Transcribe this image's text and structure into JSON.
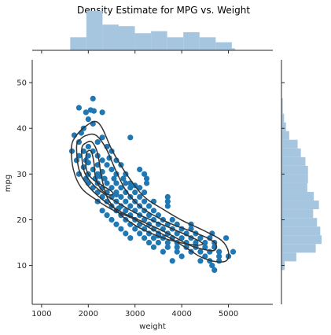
{
  "chart_data": {
    "type": "scatter",
    "title": "Density Estimate for MPG vs. Weight",
    "xlabel": "weight",
    "ylabel": "mpg",
    "xlim": [
      800,
      5950
    ],
    "ylim": [
      1.5,
      55
    ],
    "x_ticks": [
      1000,
      2000,
      3000,
      4000,
      5000
    ],
    "x_tick_labels": [
      "1000",
      "2000",
      "3000",
      "4000",
      "5000"
    ],
    "y_ticks": [
      10,
      20,
      30,
      40,
      50
    ],
    "y_tick_labels": [
      "10",
      "20",
      "30",
      "40",
      "50"
    ],
    "grid": false,
    "colors": {
      "points": "#1f77b4",
      "histogram": "#a6c6e0",
      "contour": "#333333",
      "axis": "#262626"
    },
    "points": [
      [
        1800,
        44.5
      ],
      [
        2100,
        46.5
      ],
      [
        2050,
        44
      ],
      [
        2120,
        43.8
      ],
      [
        2300,
        43.5
      ],
      [
        1950,
        43.5
      ],
      [
        2000,
        42
      ],
      [
        2100,
        41
      ],
      [
        1900,
        40
      ],
      [
        1850,
        39
      ],
      [
        1700,
        38.5
      ],
      [
        2300,
        38
      ],
      [
        2900,
        38
      ],
      [
        1800,
        37
      ],
      [
        2200,
        37
      ],
      [
        2000,
        36
      ],
      [
        2400,
        36
      ],
      [
        1650,
        35
      ],
      [
        1900,
        35
      ],
      [
        2100,
        35
      ],
      [
        2500,
        35
      ],
      [
        1800,
        34
      ],
      [
        2000,
        34
      ],
      [
        2200,
        34
      ],
      [
        2300,
        33
      ],
      [
        1750,
        33
      ],
      [
        2600,
        33
      ],
      [
        2000,
        32.5
      ],
      [
        2400,
        32
      ],
      [
        2700,
        32
      ],
      [
        1900,
        31.5
      ],
      [
        2100,
        31
      ],
      [
        2500,
        31
      ],
      [
        2300,
        30.5
      ],
      [
        1800,
        30
      ],
      [
        2000,
        30
      ],
      [
        2200,
        30
      ],
      [
        2600,
        30
      ],
      [
        2800,
        30
      ],
      [
        3100,
        31
      ],
      [
        3200,
        30
      ],
      [
        1950,
        29
      ],
      [
        2150,
        29
      ],
      [
        2350,
        29
      ],
      [
        2550,
        29
      ],
      [
        2750,
        29
      ],
      [
        3250,
        29
      ],
      [
        2000,
        28
      ],
      [
        2200,
        28
      ],
      [
        2400,
        28
      ],
      [
        2600,
        28
      ],
      [
        2800,
        28
      ],
      [
        2900,
        28
      ],
      [
        3000,
        27.5
      ],
      [
        2100,
        27
      ],
      [
        2300,
        27
      ],
      [
        2500,
        27
      ],
      [
        2700,
        27
      ],
      [
        2900,
        27
      ],
      [
        3100,
        27
      ],
      [
        2200,
        26
      ],
      [
        2400,
        26
      ],
      [
        2600,
        26
      ],
      [
        2800,
        26
      ],
      [
        3000,
        26
      ],
      [
        3200,
        26
      ],
      [
        2300,
        25
      ],
      [
        2500,
        25
      ],
      [
        2700,
        25
      ],
      [
        2900,
        25
      ],
      [
        3100,
        25
      ],
      [
        3700,
        25
      ],
      [
        2400,
        24
      ],
      [
        2600,
        24
      ],
      [
        2800,
        24
      ],
      [
        3000,
        24
      ],
      [
        3200,
        24
      ],
      [
        3400,
        24
      ],
      [
        3700,
        24
      ],
      [
        2200,
        24
      ],
      [
        2500,
        23
      ],
      [
        2700,
        23
      ],
      [
        2900,
        23
      ],
      [
        3100,
        23
      ],
      [
        3300,
        23
      ],
      [
        2300,
        22
      ],
      [
        2600,
        22
      ],
      [
        2800,
        22
      ],
      [
        3000,
        22
      ],
      [
        3200,
        22
      ],
      [
        3400,
        22
      ],
      [
        2400,
        21
      ],
      [
        2700,
        21
      ],
      [
        2900,
        21
      ],
      [
        3100,
        21
      ],
      [
        3300,
        21
      ],
      [
        3500,
        21
      ],
      [
        2500,
        20
      ],
      [
        2800,
        20
      ],
      [
        3000,
        20
      ],
      [
        3200,
        20
      ],
      [
        3400,
        20
      ],
      [
        3600,
        20
      ],
      [
        3800,
        20
      ],
      [
        2600,
        19
      ],
      [
        2900,
        19
      ],
      [
        3100,
        19
      ],
      [
        3300,
        19
      ],
      [
        3500,
        19
      ],
      [
        3700,
        19
      ],
      [
        3900,
        19
      ],
      [
        2700,
        18
      ],
      [
        3000,
        18
      ],
      [
        3200,
        18
      ],
      [
        3400,
        18
      ],
      [
        3600,
        18
      ],
      [
        3800,
        18
      ],
      [
        4000,
        18
      ],
      [
        4200,
        18
      ],
      [
        2800,
        17
      ],
      [
        3100,
        17
      ],
      [
        3300,
        17
      ],
      [
        3500,
        17
      ],
      [
        3700,
        17
      ],
      [
        3900,
        17
      ],
      [
        4100,
        17
      ],
      [
        4300,
        17
      ],
      [
        2900,
        16
      ],
      [
        3200,
        16
      ],
      [
        3400,
        16
      ],
      [
        3600,
        16
      ],
      [
        3800,
        16
      ],
      [
        4000,
        16
      ],
      [
        4200,
        16
      ],
      [
        4400,
        16
      ],
      [
        4600,
        16
      ],
      [
        3300,
        15
      ],
      [
        3500,
        15
      ],
      [
        3700,
        15
      ],
      [
        3900,
        15
      ],
      [
        4100,
        15
      ],
      [
        4300,
        15
      ],
      [
        4500,
        15
      ],
      [
        4700,
        15
      ],
      [
        3400,
        14
      ],
      [
        3700,
        14
      ],
      [
        3900,
        14
      ],
      [
        4100,
        14
      ],
      [
        4300,
        14
      ],
      [
        4500,
        14
      ],
      [
        4700,
        14
      ],
      [
        3600,
        13
      ],
      [
        3900,
        13
      ],
      [
        4200,
        13
      ],
      [
        4400,
        13
      ],
      [
        4600,
        13
      ],
      [
        4800,
        13
      ],
      [
        5100,
        13
      ],
      [
        4500,
        12
      ],
      [
        4800,
        12
      ],
      [
        4000,
        12
      ],
      [
        3800,
        11
      ],
      [
        4400,
        11
      ],
      [
        4600,
        11
      ],
      [
        4800,
        11
      ],
      [
        5000,
        12
      ],
      [
        4650,
        10
      ],
      [
        4700,
        9
      ],
      [
        4950,
        16
      ],
      [
        4650,
        17
      ],
      [
        4200,
        19
      ],
      [
        3700,
        23
      ],
      [
        3250,
        28
      ],
      [
        2250,
        29.5
      ],
      [
        1950,
        33
      ],
      [
        2200,
        32
      ],
      [
        2450,
        33.5
      ],
      [
        2600,
        25.5
      ],
      [
        2650,
        22.5
      ],
      [
        3500,
        16.5
      ]
    ],
    "contours": [
      [
        [
          1640,
          36
        ],
        [
          1680,
          31
        ],
        [
          1850,
          27
        ],
        [
          2150,
          24.5
        ],
        [
          2550,
          22
        ],
        [
          2950,
          20.3
        ],
        [
          3350,
          18
        ],
        [
          3750,
          16
        ],
        [
          4150,
          13.5
        ],
        [
          4400,
          11.9
        ],
        [
          4700,
          10.9
        ],
        [
          4950,
          11
        ],
        [
          5000,
          13
        ],
        [
          4850,
          15.5
        ],
        [
          4500,
          17.5
        ],
        [
          4000,
          19.9
        ],
        [
          3600,
          22.3
        ],
        [
          3200,
          25
        ],
        [
          2850,
          29.5
        ],
        [
          2520,
          35
        ],
        [
          2300,
          40
        ],
        [
          2150,
          41.5
        ],
        [
          1950,
          40.5
        ],
        [
          1750,
          38.5
        ]
      ],
      [
        [
          1750,
          36
        ],
        [
          1800,
          31
        ],
        [
          1980,
          27.6
        ],
        [
          2280,
          24.6
        ],
        [
          2650,
          22
        ],
        [
          3000,
          20.3
        ],
        [
          3400,
          18.5
        ],
        [
          3800,
          16.5
        ],
        [
          4150,
          14.5
        ],
        [
          4480,
          13.5
        ],
        [
          4700,
          13.3
        ],
        [
          4730,
          14.7
        ],
        [
          4550,
          16
        ],
        [
          4200,
          17.5
        ],
        [
          3800,
          19
        ],
        [
          3450,
          20.7
        ],
        [
          3100,
          23
        ],
        [
          2800,
          26.5
        ],
        [
          2580,
          31
        ],
        [
          2370,
          35.8
        ],
        [
          2160,
          38.5
        ],
        [
          1970,
          38.5
        ],
        [
          1820,
          37.5
        ]
      ],
      [
        [
          1860,
          35.5
        ],
        [
          1900,
          31
        ],
        [
          2050,
          28.3
        ],
        [
          2320,
          25.8
        ],
        [
          2700,
          23.3
        ],
        [
          3050,
          21.3
        ],
        [
          3450,
          19.5
        ],
        [
          3850,
          17.8
        ],
        [
          4200,
          16.2
        ],
        [
          4400,
          15.2
        ],
        [
          4440,
          14.6
        ],
        [
          4250,
          14.5
        ],
        [
          3800,
          15.4
        ],
        [
          3400,
          16.8
        ],
        [
          3000,
          18.8
        ],
        [
          2650,
          21.5
        ],
        [
          2400,
          25
        ],
        [
          2280,
          29.5
        ],
        [
          2200,
          34.5
        ],
        [
          2080,
          37
        ],
        [
          1950,
          36.8
        ]
      ],
      [
        [
          1960,
          34.5
        ],
        [
          1960,
          31
        ],
        [
          2080,
          29
        ],
        [
          2300,
          27.5
        ],
        [
          2500,
          26.2
        ],
        [
          2520,
          25.5
        ],
        [
          2400,
          25.6
        ],
        [
          2250,
          27
        ],
        [
          2150,
          29.5
        ],
        [
          2120,
          32.5
        ],
        [
          2060,
          35
        ]
      ]
    ],
    "x_hist": {
      "bin_edges": [
        1613,
        1959,
        2305,
        2651,
        2997,
        3343,
        3689,
        4035,
        4381,
        4727,
        5073,
        5140
      ],
      "counts": [
        26,
        78,
        51,
        48,
        34,
        38,
        26,
        36,
        26,
        16,
        4
      ]
    },
    "y_hist": {
      "bin_edges": [
        9,
        10.9,
        12.8,
        14.7,
        16.6,
        18.5,
        20.4,
        22.3,
        24.2,
        26.1,
        28,
        29.9,
        31.8,
        33.7,
        35.6,
        37.5,
        39.4,
        41.3,
        43.2,
        45.1,
        46.6
      ],
      "counts": [
        5,
        23,
        53,
        62,
        60,
        55,
        49,
        58,
        50,
        40,
        41,
        41,
        37,
        30,
        25,
        12,
        7,
        4,
        2,
        2
      ]
    }
  }
}
